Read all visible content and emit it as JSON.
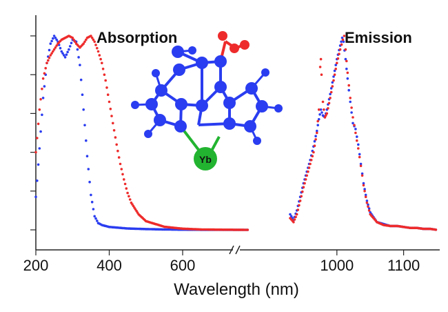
{
  "chart_data": {
    "type": "scatter",
    "title": "",
    "xlabel": "Wavelength (nm)",
    "ylabel": "",
    "axis_break": true,
    "panels": [
      {
        "label": "Absorption",
        "xlim": [
          200,
          800
        ],
        "ticks": [
          200,
          400,
          600
        ],
        "series": [
          {
            "color": "#2a3df0",
            "points": [
              [
                200,
                0.17
              ],
              [
                210,
                0.42
              ],
              [
                220,
                0.68
              ],
              [
                230,
                0.86
              ],
              [
                240,
                0.96
              ],
              [
                250,
                1.0
              ],
              [
                260,
                0.97
              ],
              [
                270,
                0.92
              ],
              [
                280,
                0.89
              ],
              [
                290,
                0.93
              ],
              [
                300,
                0.98
              ],
              [
                310,
                0.97
              ],
              [
                320,
                0.85
              ],
              [
                330,
                0.62
              ],
              [
                340,
                0.38
              ],
              [
                350,
                0.18
              ],
              [
                360,
                0.07
              ],
              [
                370,
                0.035
              ],
              [
                380,
                0.025
              ],
              [
                400,
                0.015
              ],
              [
                450,
                0.007
              ],
              [
                500,
                0.004
              ],
              [
                550,
                0.002
              ],
              [
                600,
                0.001
              ],
              [
                700,
                0.0
              ],
              [
                780,
                0.0
              ]
            ]
          },
          {
            "color": "#ee2b2b",
            "points": [
              [
                200,
                0.4
              ],
              [
                210,
                0.62
              ],
              [
                220,
                0.78
              ],
              [
                230,
                0.86
              ],
              [
                240,
                0.9
              ],
              [
                250,
                0.93
              ],
              [
                260,
                0.96
              ],
              [
                270,
                0.98
              ],
              [
                280,
                0.99
              ],
              [
                290,
                1.0
              ],
              [
                300,
                0.99
              ],
              [
                310,
                0.96
              ],
              [
                320,
                0.94
              ],
              [
                330,
                0.96
              ],
              [
                340,
                0.99
              ],
              [
                350,
                1.0
              ],
              [
                360,
                0.97
              ],
              [
                370,
                0.92
              ],
              [
                380,
                0.86
              ],
              [
                390,
                0.77
              ],
              [
                400,
                0.66
              ],
              [
                410,
                0.55
              ],
              [
                420,
                0.44
              ],
              [
                430,
                0.34
              ],
              [
                440,
                0.26
              ],
              [
                450,
                0.19
              ],
              [
                460,
                0.14
              ],
              [
                480,
                0.08
              ],
              [
                500,
                0.045
              ],
              [
                550,
                0.016
              ],
              [
                600,
                0.006
              ],
              [
                650,
                0.002
              ],
              [
                700,
                0.001
              ],
              [
                780,
                0.0
              ]
            ]
          }
        ]
      },
      {
        "label": "Emission",
        "xlim": [
          900,
          1150
        ],
        "ticks": [
          1000,
          1100
        ],
        "series": [
          {
            "color": "#2a3df0",
            "points": [
              [
                930,
                0.08
              ],
              [
                935,
                0.05
              ],
              [
                940,
                0.1
              ],
              [
                945,
                0.17
              ],
              [
                950,
                0.24
              ],
              [
                955,
                0.3
              ],
              [
                960,
                0.36
              ],
              [
                965,
                0.43
              ],
              [
                970,
                0.51
              ],
              [
                973,
                0.57
              ],
              [
                976,
                0.62
              ],
              [
                979,
                0.59
              ],
              [
                982,
                0.58
              ],
              [
                985,
                0.62
              ],
              [
                990,
                0.7
              ],
              [
                995,
                0.79
              ],
              [
                1000,
                0.88
              ],
              [
                1005,
                0.95
              ],
              [
                1008,
                0.99
              ],
              [
                1010,
                0.97
              ],
              [
                1013,
                0.88
              ],
              [
                1016,
                0.78
              ],
              [
                1020,
                0.66
              ],
              [
                1024,
                0.55
              ],
              [
                1028,
                0.52
              ],
              [
                1032,
                0.44
              ],
              [
                1036,
                0.34
              ],
              [
                1040,
                0.24
              ],
              [
                1045,
                0.15
              ],
              [
                1050,
                0.09
              ],
              [
                1060,
                0.04
              ],
              [
                1070,
                0.03
              ],
              [
                1080,
                0.02
              ],
              [
                1090,
                0.02
              ],
              [
                1100,
                0.015
              ],
              [
                1110,
                0.01
              ],
              [
                1120,
                0.01
              ],
              [
                1130,
                0.005
              ],
              [
                1140,
                0.005
              ],
              [
                1150,
                0.0
              ]
            ]
          },
          {
            "color": "#ee2b2b",
            "points": [
              [
                930,
                0.06
              ],
              [
                935,
                0.04
              ],
              [
                940,
                0.08
              ],
              [
                945,
                0.15
              ],
              [
                950,
                0.22
              ],
              [
                955,
                0.28
              ],
              [
                960,
                0.34
              ],
              [
                965,
                0.4
              ],
              [
                970,
                0.5
              ],
              [
                973,
                0.62
              ],
              [
                975,
                0.84
              ],
              [
                976,
                0.88
              ],
              [
                977,
                0.8
              ],
              [
                979,
                0.66
              ],
              [
                982,
                0.58
              ],
              [
                985,
                0.6
              ],
              [
                990,
                0.68
              ],
              [
                995,
                0.77
              ],
              [
                1000,
                0.86
              ],
              [
                1005,
                0.93
              ],
              [
                1009,
                0.98
              ],
              [
                1011,
                1.0
              ],
              [
                1013,
                0.93
              ],
              [
                1016,
                0.81
              ],
              [
                1020,
                0.68
              ],
              [
                1024,
                0.58
              ],
              [
                1028,
                0.5
              ],
              [
                1032,
                0.42
              ],
              [
                1036,
                0.33
              ],
              [
                1040,
                0.23
              ],
              [
                1045,
                0.14
              ],
              [
                1050,
                0.08
              ],
              [
                1060,
                0.04
              ],
              [
                1070,
                0.025
              ],
              [
                1080,
                0.02
              ],
              [
                1090,
                0.02
              ],
              [
                1100,
                0.015
              ],
              [
                1110,
                0.01
              ],
              [
                1120,
                0.01
              ],
              [
                1130,
                0.005
              ],
              [
                1140,
                0.005
              ],
              [
                1150,
                0.0
              ]
            ]
          }
        ]
      }
    ],
    "inset": {
      "description_label": "Yb",
      "atom_color": "#2a3df0",
      "oxygen_color": "#ee2b2b",
      "metal_color": "#22b430",
      "bond_color": "#2a3df0"
    }
  }
}
